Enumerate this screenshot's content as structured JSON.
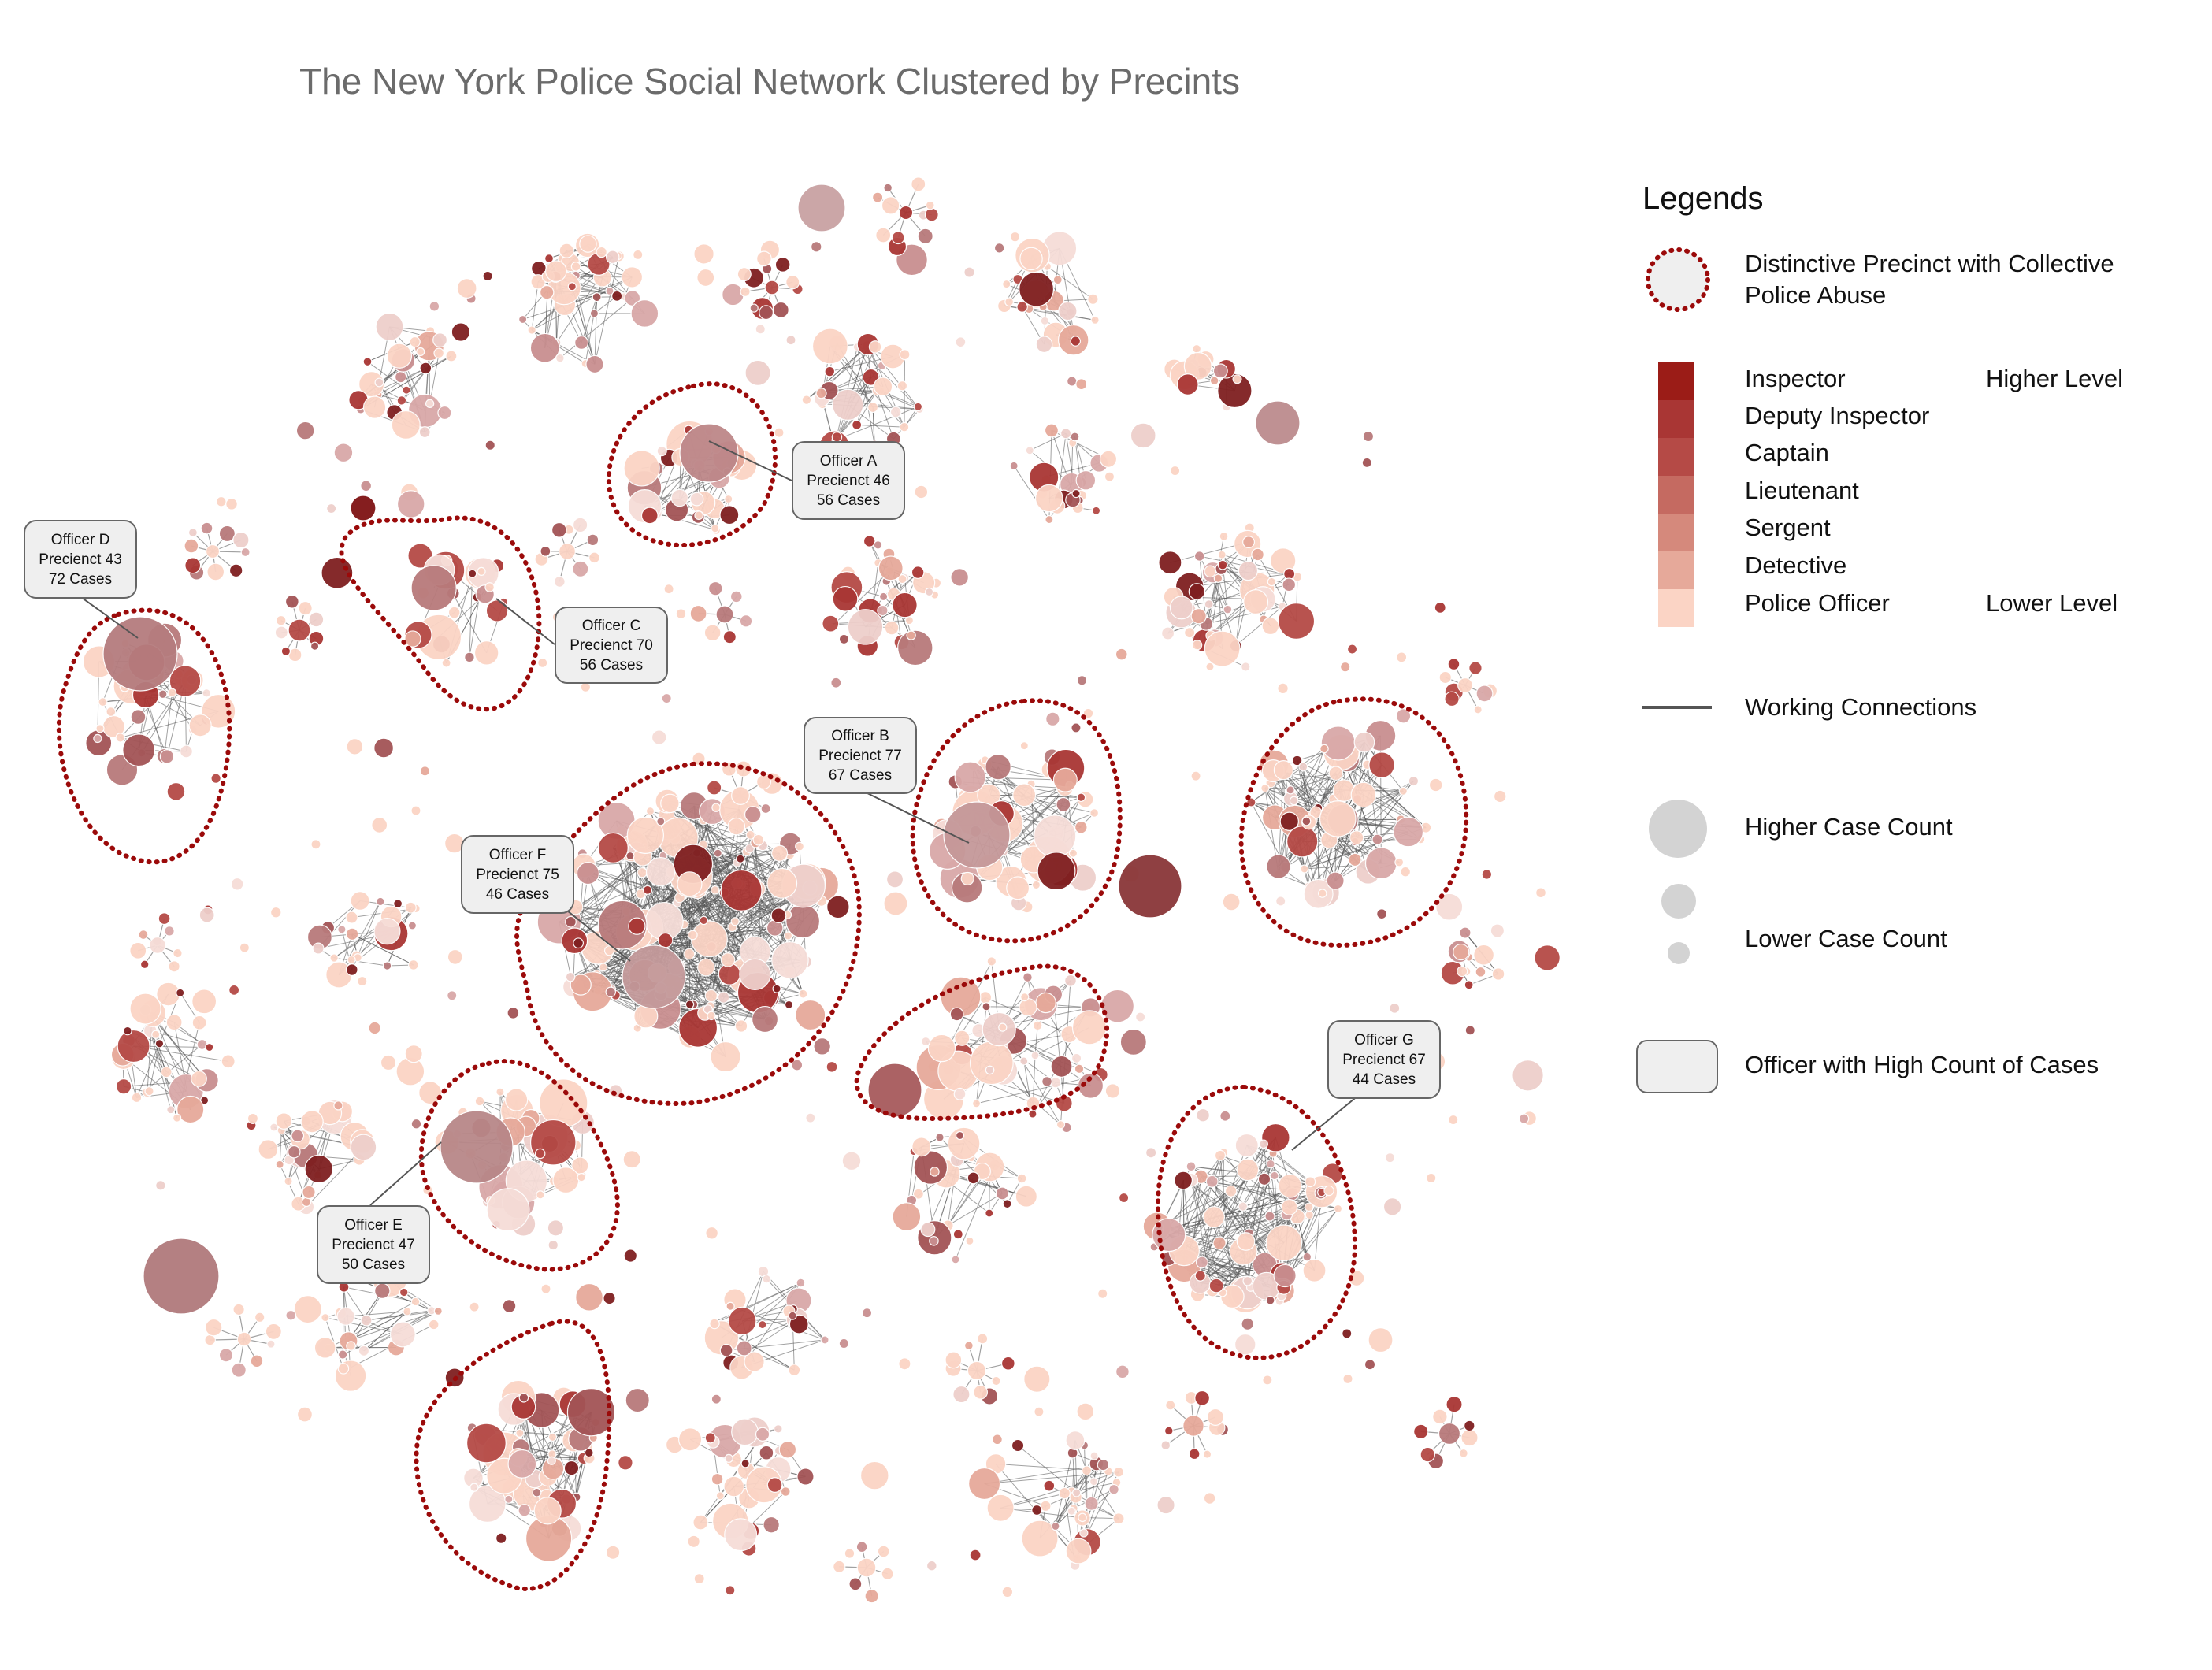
{
  "title": "The New York Police Social Network Clustered by Precints",
  "colors": {
    "inspector": "#9b1c17",
    "deputy_inspector": "#a93634",
    "captain": "#b54a46",
    "lieutenant": "#c56a61",
    "sergent": "#d5897c",
    "detective": "#e6a99a",
    "police_officer": "#fbd4c5",
    "boundary": "#9b0a0a",
    "edge": "#555555",
    "callout_bg": "#efefef"
  },
  "legend": {
    "title": "Legends",
    "precinct_label": "Distinctive Precinct with Collective Police Abuse",
    "ranks": [
      "Inspector",
      "Deputy Inspector",
      "Captain",
      "Lieutenant",
      "Sergent",
      "Detective",
      "Police Officer"
    ],
    "higher_level": "Higher Level",
    "lower_level": "Lower Level",
    "connections": "Working Connections",
    "higher_case": "Higher Case Count",
    "lower_case": "Lower Case Count",
    "high_count_officer": "Officer with High Count of Cases"
  },
  "callouts": [
    {
      "officer": "Officer A",
      "precinct": "Precienct 46",
      "cases": "56 Cases"
    },
    {
      "officer": "Officer B",
      "precinct": "Precienct 77",
      "cases": "67 Cases"
    },
    {
      "officer": "Officer C",
      "precinct": "Precienct 70",
      "cases": "56 Cases"
    },
    {
      "officer": "Officer D",
      "precinct": "Precienct 43",
      "cases": "72 Cases"
    },
    {
      "officer": "Officer E",
      "precinct": "Precienct 47",
      "cases": "50 Cases"
    },
    {
      "officer": "Officer F",
      "precinct": "Precienct 75",
      "cases": "46 Cases"
    },
    {
      "officer": "Officer G",
      "precinct": "Precienct 67",
      "cases": "44 Cases"
    }
  ]
}
